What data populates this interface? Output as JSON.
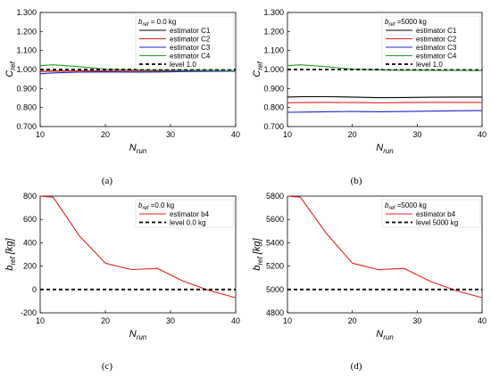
{
  "chart_data": [
    {
      "type": "line",
      "caption": "(a)",
      "xlabel": "N",
      "xlabel_sub": "run",
      "ylabel": "C",
      "ylabel_sub": "ref",
      "xlim": [
        10,
        40
      ],
      "ylim": [
        0.7,
        1.3
      ],
      "xticks": [
        "10",
        "20",
        "30",
        "40"
      ],
      "yticks": [
        "0.700",
        "0.800",
        "0.900",
        "1.000",
        "1.100",
        "1.200",
        "1.300"
      ],
      "legend_title": "b",
      "legend_title_sub": "ref",
      "legend_title_rest": " = 0.0 kg",
      "legend_position": "top-right",
      "series": [
        {
          "name": "estimator C1",
          "color": "#000000",
          "dashed": false,
          "x": [
            10,
            12,
            16,
            20,
            24,
            28,
            32,
            36,
            40
          ],
          "y": [
            0.99,
            0.992,
            0.993,
            0.992,
            0.991,
            0.991,
            0.992,
            0.992,
            0.992
          ]
        },
        {
          "name": "estimator C2",
          "color": "#e02020",
          "dashed": false,
          "x": [
            10,
            12,
            16,
            20,
            24,
            28,
            32,
            36,
            40
          ],
          "y": [
            0.989,
            0.991,
            0.992,
            0.991,
            0.99,
            0.99,
            0.991,
            0.991,
            0.991
          ]
        },
        {
          "name": "estimator C3",
          "color": "#2020d0",
          "dashed": false,
          "x": [
            10,
            12,
            16,
            20,
            24,
            28,
            32,
            36,
            40
          ],
          "y": [
            0.978,
            0.982,
            0.986,
            0.987,
            0.986,
            0.987,
            0.989,
            0.99,
            0.991
          ]
        },
        {
          "name": "estimator C4",
          "color": "#20a020",
          "dashed": false,
          "x": [
            10,
            12,
            16,
            20,
            24,
            28,
            32,
            36,
            40
          ],
          "y": [
            1.02,
            1.025,
            1.015,
            1.002,
            0.998,
            0.996,
            0.996,
            0.995,
            0.994
          ]
        },
        {
          "name": "level 1.0",
          "color": "#000000",
          "dashed": true,
          "x": [
            10,
            40
          ],
          "y": [
            1.0,
            1.0
          ]
        }
      ]
    },
    {
      "type": "line",
      "caption": "(b)",
      "xlabel": "N",
      "xlabel_sub": "run",
      "ylabel": "C",
      "ylabel_sub": "ref",
      "xlim": [
        10,
        40
      ],
      "ylim": [
        0.7,
        1.3
      ],
      "xticks": [
        "10",
        "20",
        "30",
        "40"
      ],
      "yticks": [
        "0.700",
        "0.800",
        "0.900",
        "1.000",
        "1.100",
        "1.200",
        "1.300"
      ],
      "legend_title": "b",
      "legend_title_sub": "ref",
      "legend_title_rest": " =5000 kg",
      "legend_position": "top-right",
      "series": [
        {
          "name": "estimator C1",
          "color": "#000000",
          "dashed": false,
          "x": [
            10,
            12,
            16,
            20,
            24,
            28,
            32,
            36,
            40
          ],
          "y": [
            0.855,
            0.857,
            0.857,
            0.855,
            0.852,
            0.853,
            0.854,
            0.855,
            0.855
          ]
        },
        {
          "name": "estimator C2",
          "color": "#e02020",
          "dashed": false,
          "x": [
            10,
            12,
            16,
            20,
            24,
            28,
            32,
            36,
            40
          ],
          "y": [
            0.825,
            0.826,
            0.827,
            0.826,
            0.825,
            0.826,
            0.827,
            0.827,
            0.827
          ]
        },
        {
          "name": "estimator C3",
          "color": "#2020d0",
          "dashed": false,
          "x": [
            10,
            12,
            16,
            20,
            24,
            28,
            32,
            36,
            40
          ],
          "y": [
            0.775,
            0.776,
            0.778,
            0.779,
            0.778,
            0.779,
            0.781,
            0.783,
            0.784
          ]
        },
        {
          "name": "estimator C4",
          "color": "#20a020",
          "dashed": false,
          "x": [
            10,
            12,
            16,
            20,
            24,
            28,
            32,
            36,
            40
          ],
          "y": [
            1.02,
            1.025,
            1.015,
            1.002,
            0.998,
            0.996,
            0.996,
            0.995,
            0.994
          ]
        },
        {
          "name": "level 1.0",
          "color": "#000000",
          "dashed": true,
          "x": [
            10,
            40
          ],
          "y": [
            1.0,
            1.0
          ]
        }
      ]
    },
    {
      "type": "line",
      "caption": "(c)",
      "xlabel": "N",
      "xlabel_sub": "run",
      "ylabel": "b",
      "ylabel_sub": "ref",
      "ylabel_rest": " [kg]",
      "xlim": [
        10,
        40
      ],
      "ylim": [
        -200,
        800
      ],
      "xticks": [
        "10",
        "20",
        "30",
        "40"
      ],
      "yticks": [
        "-200",
        "0",
        "200",
        "400",
        "600",
        "800"
      ],
      "legend_title": "b",
      "legend_title_sub": "ref",
      "legend_title_rest": " =0.0 kg",
      "legend_position": "top-right",
      "series": [
        {
          "name": "estimator b4",
          "color": "#e02020",
          "dashed": false,
          "x": [
            10,
            12,
            16,
            20,
            24,
            28,
            32,
            36,
            40
          ],
          "y": [
            800,
            790,
            460,
            225,
            170,
            180,
            70,
            -10,
            -70
          ]
        },
        {
          "name": "level 0.0 kg",
          "color": "#000000",
          "dashed": true,
          "x": [
            10,
            40
          ],
          "y": [
            0,
            0
          ]
        }
      ]
    },
    {
      "type": "line",
      "caption": "(d)",
      "xlabel": "N",
      "xlabel_sub": "run",
      "ylabel": "b",
      "ylabel_sub": "ref",
      "ylabel_rest": " [kg]",
      "xlim": [
        10,
        40
      ],
      "ylim": [
        4800,
        5800
      ],
      "xticks": [
        "10",
        "20",
        "30",
        "40"
      ],
      "yticks": [
        "4800",
        "5000",
        "5200",
        "5400",
        "5600",
        "5800"
      ],
      "legend_title": "b",
      "legend_title_sub": "ref",
      "legend_title_rest": " =5000 kg",
      "legend_position": "top-right",
      "series": [
        {
          "name": "estimator b4",
          "color": "#e02020",
          "dashed": false,
          "x": [
            10,
            12,
            16,
            20,
            24,
            28,
            32,
            36,
            40
          ],
          "y": [
            5800,
            5790,
            5480,
            5225,
            5170,
            5180,
            5070,
            4990,
            4930
          ]
        },
        {
          "name": "level 5000 kg",
          "color": "#000000",
          "dashed": true,
          "x": [
            10,
            40
          ],
          "y": [
            5000,
            5000
          ]
        }
      ]
    }
  ]
}
